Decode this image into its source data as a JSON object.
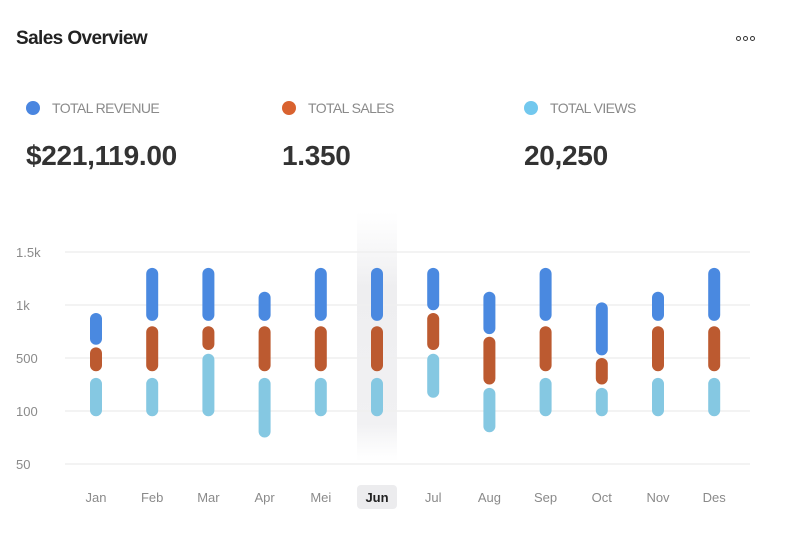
{
  "header": {
    "title": "Sales Overview",
    "menu_icon": "more-horizontal-icon"
  },
  "stats": [
    {
      "label": "TOTAL REVENUE",
      "value": "$221,119.00",
      "color": "#4a86e0"
    },
    {
      "label": "TOTAL SALES",
      "value": "1.350",
      "color": "#d9622f"
    },
    {
      "label": "TOTAL VIEWS",
      "value": "20,250",
      "color": "#72c8ee"
    }
  ],
  "chart_data": {
    "type": "bar",
    "subtype": "floating-range",
    "title": "Sales Overview",
    "xlabel": "",
    "ylabel": "",
    "categories": [
      "Jan",
      "Feb",
      "Mar",
      "Apr",
      "Mei",
      "Jun",
      "Jul",
      "Aug",
      "Sep",
      "Oct",
      "Nov",
      "Des"
    ],
    "selected_category": "Jun",
    "y_ticks": [
      50,
      100,
      500,
      1000,
      1500
    ],
    "y_tick_labels": [
      "50",
      "100",
      "500",
      "1k",
      "1.5k"
    ],
    "ylim": [
      50,
      1500
    ],
    "grid": true,
    "series": [
      {
        "name": "Total Revenue",
        "color": "#4a89e0",
        "ranges": [
          [
            625,
            925
          ],
          [
            850,
            1350
          ],
          [
            850,
            1350
          ],
          [
            850,
            1125
          ],
          [
            850,
            1350
          ],
          [
            850,
            1350
          ],
          [
            950,
            1350
          ],
          [
            725,
            1125
          ],
          [
            850,
            1350
          ],
          [
            525,
            1025
          ],
          [
            850,
            1125
          ],
          [
            850,
            1350
          ]
        ]
      },
      {
        "name": "Total Sales",
        "color": "#bc5a30",
        "ranges": [
          [
            400,
            600
          ],
          [
            400,
            800
          ],
          [
            575,
            800
          ],
          [
            400,
            800
          ],
          [
            400,
            800
          ],
          [
            400,
            800
          ],
          [
            575,
            925
          ],
          [
            300,
            700
          ],
          [
            400,
            800
          ],
          [
            300,
            500
          ],
          [
            400,
            800
          ],
          [
            400,
            800
          ]
        ]
      },
      {
        "name": "Total Views",
        "color": "#85c8e2",
        "ranges": [
          [
            95,
            350
          ],
          [
            95,
            350
          ],
          [
            95,
            540
          ],
          [
            75,
            350
          ],
          [
            95,
            350
          ],
          [
            95,
            350
          ],
          [
            200,
            540
          ],
          [
            80,
            275
          ],
          [
            95,
            350
          ],
          [
            95,
            275
          ],
          [
            95,
            350
          ],
          [
            95,
            350
          ]
        ]
      }
    ]
  }
}
